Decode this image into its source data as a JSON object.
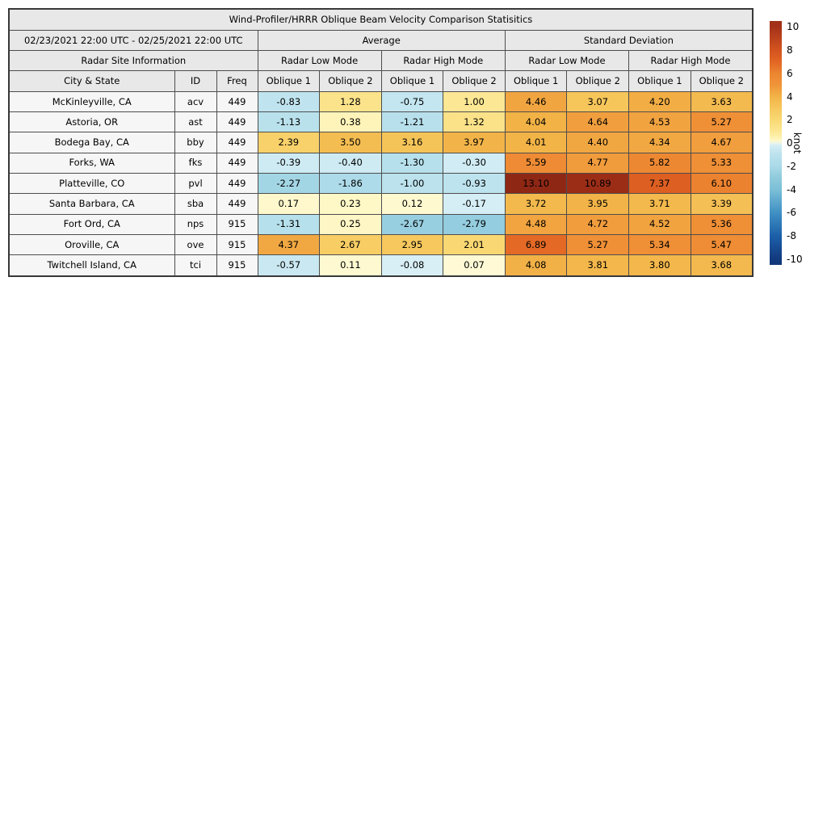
{
  "figure": {
    "title": "Wind-Profiler/HRRR Oblique Beam Velocity Comparison Statisitics"
  },
  "table": {
    "date_range": "02/23/2021 22:00 UTC - 02/25/2021 22:00 UTC",
    "group_headers": [
      "Average",
      "Standard Deviation"
    ],
    "site_info_header": "Radar Site Information",
    "mode_headers": [
      "Radar Low Mode",
      "Radar High Mode",
      "Radar Low Mode",
      "Radar High Mode"
    ],
    "column_headers": [
      "City & State",
      "ID",
      "Freq",
      "Oblique 1",
      "Oblique 2",
      "Oblique 1",
      "Oblique 2",
      "Oblique 1",
      "Oblique 2",
      "Oblique 1",
      "Oblique 2"
    ]
  },
  "chart_data": {
    "type": "heatmap",
    "title": "Wind-Profiler/HRRR Oblique Beam Velocity Comparison Statisitics",
    "time_range": "02/23/2021 22:00 UTC - 02/25/2021 22:00 UTC",
    "value_column_order": [
      "Average / Radar Low Mode / Oblique 1",
      "Average / Radar Low Mode / Oblique 2",
      "Average / Radar High Mode / Oblique 1",
      "Average / Radar High Mode / Oblique 2",
      "Standard Deviation / Radar Low Mode / Oblique 1",
      "Standard Deviation / Radar Low Mode / Oblique 2",
      "Standard Deviation / Radar High Mode / Oblique 1",
      "Standard Deviation / Radar High Mode / Oblique 2"
    ],
    "rows": [
      {
        "city": "McKinleyville, CA",
        "id": "acv",
        "freq": "449",
        "values": [
          -0.83,
          1.28,
          -0.75,
          1.0,
          4.46,
          3.07,
          4.2,
          3.63
        ]
      },
      {
        "city": "Astoria, OR",
        "id": "ast",
        "freq": "449",
        "values": [
          -1.13,
          0.38,
          -1.21,
          1.32,
          4.04,
          4.64,
          4.53,
          5.27
        ]
      },
      {
        "city": "Bodega Bay, CA",
        "id": "bby",
        "freq": "449",
        "values": [
          2.39,
          3.5,
          3.16,
          3.97,
          4.01,
          4.4,
          4.34,
          4.67
        ]
      },
      {
        "city": "Forks, WA",
        "id": "fks",
        "freq": "449",
        "values": [
          -0.39,
          -0.4,
          -1.3,
          -0.3,
          5.59,
          4.77,
          5.82,
          5.33
        ]
      },
      {
        "city": "Platteville, CO",
        "id": "pvl",
        "freq": "449",
        "values": [
          -2.27,
          -1.86,
          -1.0,
          -0.93,
          13.1,
          10.89,
          7.37,
          6.1
        ]
      },
      {
        "city": "Santa Barbara, CA",
        "id": "sba",
        "freq": "449",
        "values": [
          0.17,
          0.23,
          0.12,
          -0.17,
          3.72,
          3.95,
          3.71,
          3.39
        ]
      },
      {
        "city": "Fort Ord, CA",
        "id": "nps",
        "freq": "915",
        "values": [
          -1.31,
          0.25,
          -2.67,
          -2.79,
          4.48,
          4.72,
          4.52,
          5.36
        ]
      },
      {
        "city": "Oroville, CA",
        "id": "ove",
        "freq": "915",
        "values": [
          4.37,
          2.67,
          2.95,
          2.01,
          6.89,
          5.27,
          5.34,
          5.47
        ]
      },
      {
        "city": "Twitchell Island, CA",
        "id": "tci",
        "freq": "915",
        "values": [
          -0.57,
          0.11,
          -0.08,
          0.07,
          4.08,
          3.81,
          3.8,
          3.68
        ]
      }
    ]
  },
  "colorbar": {
    "label": "knot",
    "ticks": [
      10,
      8,
      6,
      4,
      2,
      0,
      -2,
      -4,
      -6,
      -8,
      -10
    ],
    "vmin": -10.5,
    "vmax": 10.5,
    "colormap_stops": [
      [
        -12,
        "#0d2f66"
      ],
      [
        -10,
        "#123a7e"
      ],
      [
        -8,
        "#1d60aa"
      ],
      [
        -6,
        "#4090c4"
      ],
      [
        -4,
        "#7cc0d8"
      ],
      [
        -3,
        "#8ecadc"
      ],
      [
        -2,
        "#abdae8"
      ],
      [
        -1,
        "#bbe2ed"
      ],
      [
        -0.02,
        "#daf0f7"
      ],
      [
        0.02,
        "#fffbd9"
      ],
      [
        0.5,
        "#fdf1ae"
      ],
      [
        1,
        "#fce794"
      ],
      [
        2,
        "#f9d873"
      ],
      [
        3,
        "#f6c75c"
      ],
      [
        4,
        "#f2b347"
      ],
      [
        5,
        "#f09439"
      ],
      [
        6,
        "#ec8530"
      ],
      [
        7,
        "#e26524"
      ],
      [
        8,
        "#d4541f"
      ],
      [
        10,
        "#a43119"
      ],
      [
        12,
        "#8f2715"
      ]
    ]
  }
}
